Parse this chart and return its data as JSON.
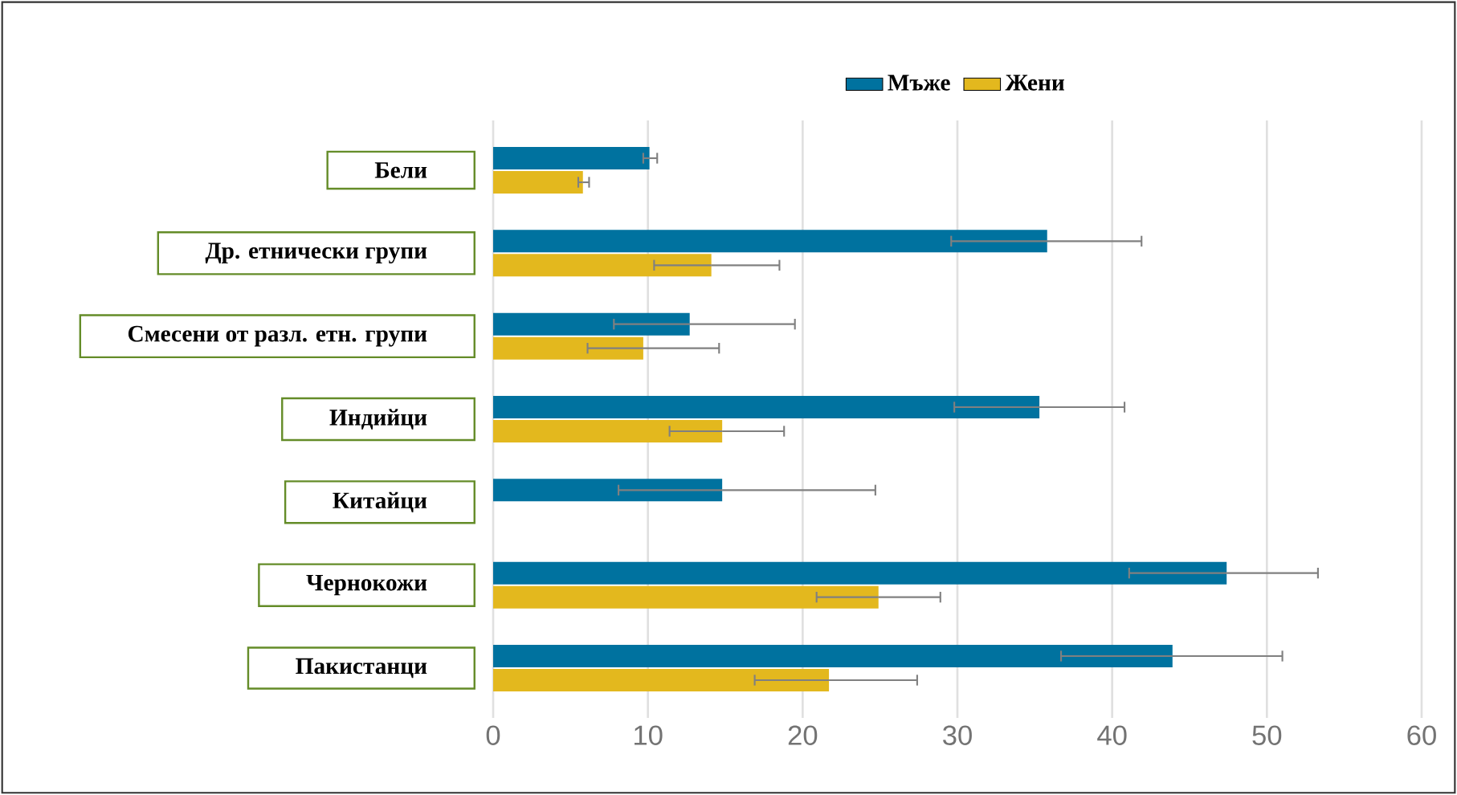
{
  "chart_data": {
    "type": "bar",
    "orientation": "horizontal",
    "categories": [
      "Бели",
      "Др. етнически групи",
      "Смесени от разл. етн. групи",
      "Индийци",
      "Китайци",
      "Чернокожи",
      "Пакистанци"
    ],
    "series": [
      {
        "name": "Мъже",
        "color": "#00729f",
        "values": [
          10.1,
          35.8,
          12.7,
          35.3,
          14.8,
          47.4,
          43.9
        ],
        "errors": [
          [
            9.7,
            10.6
          ],
          [
            29.6,
            41.9
          ],
          [
            7.8,
            19.5
          ],
          [
            29.8,
            40.8
          ],
          [
            8.1,
            24.7
          ],
          [
            41.1,
            53.3
          ],
          [
            36.7,
            51.0
          ]
        ]
      },
      {
        "name": "Жени",
        "color": "#e3b81e",
        "values": [
          5.8,
          14.1,
          9.7,
          14.8,
          null,
          24.9,
          21.7
        ],
        "errors": [
          [
            5.5,
            6.2
          ],
          [
            10.4,
            18.5
          ],
          [
            6.1,
            14.6
          ],
          [
            11.4,
            18.8
          ],
          null,
          [
            20.9,
            28.9
          ],
          [
            16.9,
            27.4
          ]
        ]
      }
    ],
    "xlim": [
      0,
      60
    ],
    "xticks": [
      0,
      10,
      20,
      30,
      40,
      50,
      60
    ],
    "grid": "x",
    "legend": "top"
  }
}
